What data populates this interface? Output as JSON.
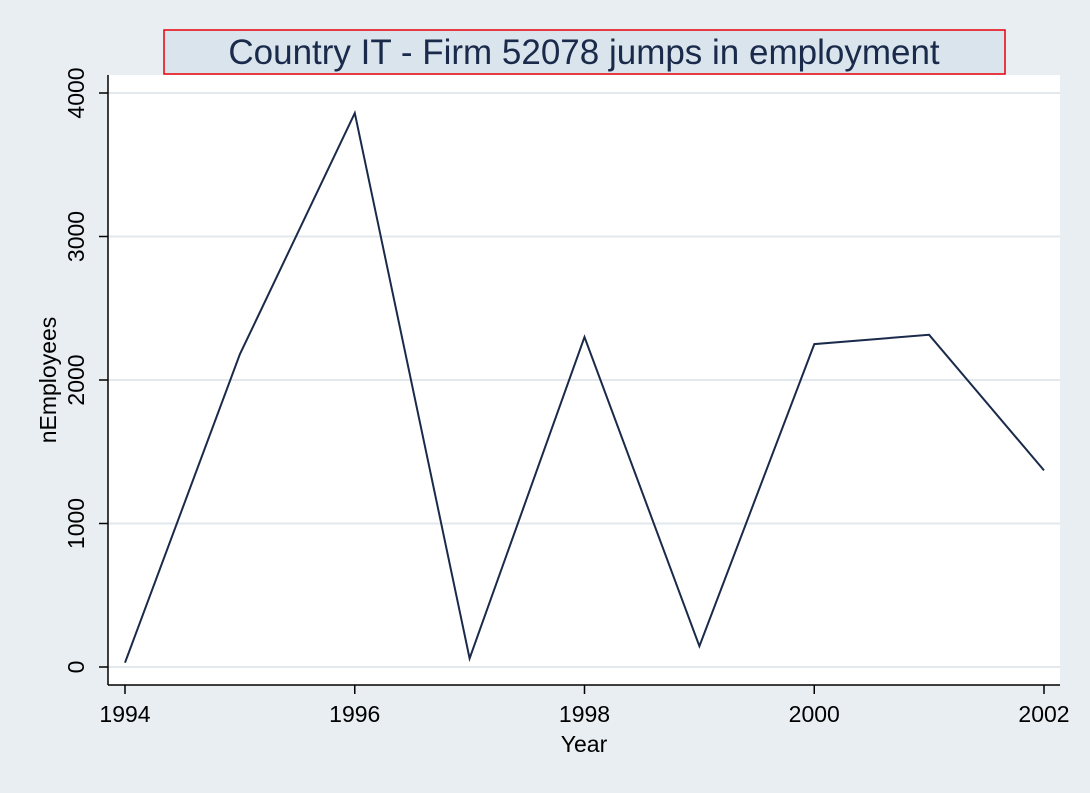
{
  "chart_data": {
    "type": "line",
    "title": "Country IT - Firm 52078  jumps in employment",
    "xlabel": "Year",
    "ylabel": "nEmployees",
    "x": [
      1994,
      1995,
      1996,
      1997,
      1998,
      1999,
      2000,
      2001,
      2002
    ],
    "series": [
      {
        "values": [
          30,
          2180,
          3860,
          60,
          2300,
          145,
          2250,
          2315,
          1370
        ]
      }
    ],
    "xlim": [
      1994,
      2002
    ],
    "ylim": [
      0,
      4000
    ],
    "xticks": [
      1994,
      1996,
      1998,
      2000,
      2002
    ],
    "yticks": [
      0,
      1000,
      2000,
      3000,
      4000
    ],
    "grid": "horizontal",
    "colors": {
      "line": "#1a2a4a",
      "background": "#e8eef2",
      "plot_background": "#ffffff",
      "title_fill": "#d9e4ec",
      "title_border": "#e8000b",
      "grid": "#e2e8ec"
    }
  }
}
